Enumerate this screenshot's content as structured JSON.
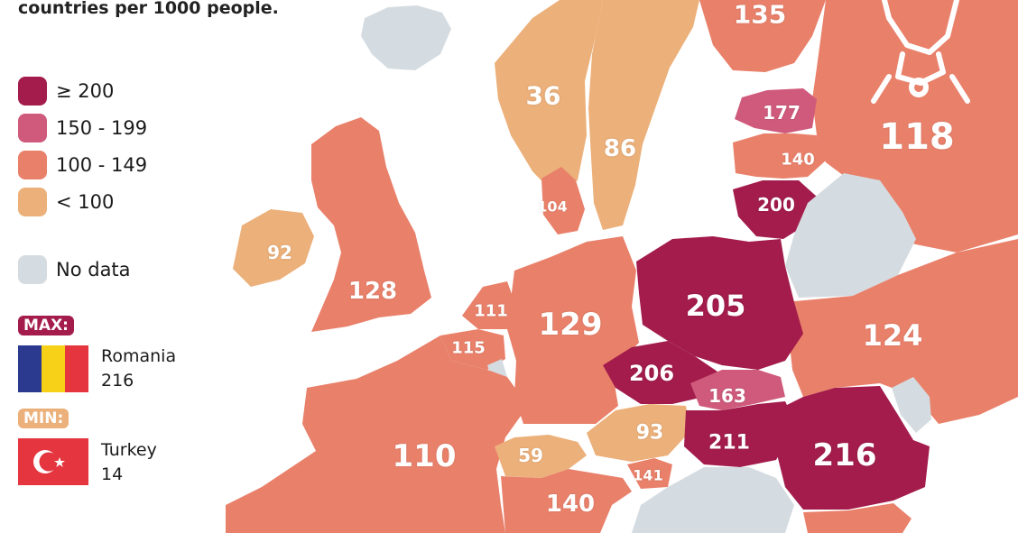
{
  "title": "countries per 1000 people.",
  "colors": {
    "c200": "#a31c4b",
    "c150": "#cf5a7b",
    "c100": "#e9806a",
    "c0": "#ecb07a",
    "nodata": "#d5dce1"
  },
  "legend": [
    {
      "label": "≥ 200",
      "color": "#a31c4b"
    },
    {
      "label": "150 - 199",
      "color": "#cf5a7b"
    },
    {
      "label": "100 - 149",
      "color": "#e9806a"
    },
    {
      "label": "< 100",
      "color": "#ecb07a"
    },
    {
      "label": "No data",
      "color": "#d5dce1"
    }
  ],
  "max": {
    "tag": "MAX:",
    "country": "Romania",
    "value": "216",
    "flag": "romania-flag-icon"
  },
  "min": {
    "tag": "MIN:",
    "country": "Turkey",
    "value": "14",
    "flag": "turkey-flag-icon"
  },
  "countries": {
    "finland": "135",
    "norway": "36",
    "sweden": "86",
    "estonia": "177",
    "russia": "118",
    "latvia": "140",
    "lithuania": "200",
    "denmark": "104",
    "ireland": "92",
    "uk": "128",
    "poland": "205",
    "netherlands": "111",
    "germany": "129",
    "belgium": "115",
    "ukraine": "124",
    "czechia": "206",
    "slovakia": "163",
    "austria": "93",
    "hungary": "211",
    "romania": "216",
    "france": "110",
    "switzerland": "59",
    "slovenia": "141",
    "italy": "140"
  }
}
